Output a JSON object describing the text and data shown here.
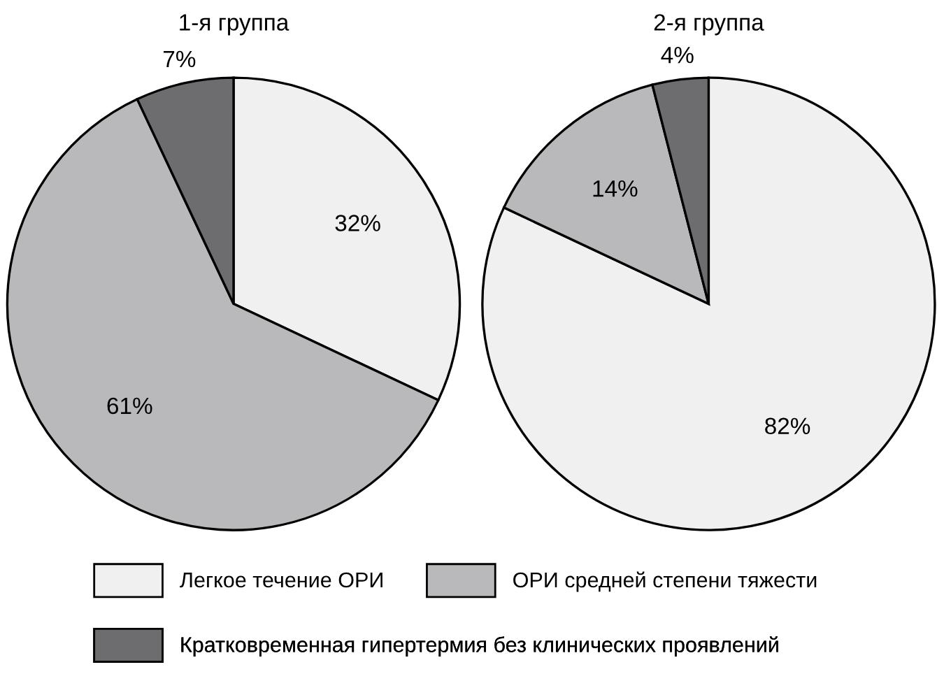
{
  "chart_data": [
    {
      "type": "pie",
      "title": "1-я группа",
      "categories": [
        "Легкое течение ОРИ",
        "ОРИ средней степени тяжести",
        "Кратковременная гипертермия без клинических проявлений"
      ],
      "values": [
        32,
        61,
        7
      ],
      "value_labels": [
        "32%",
        "61%",
        "7%"
      ],
      "colors": [
        "#f0f0f0",
        "#b9b9bb",
        "#6d6d70"
      ],
      "legend": "bottom"
    },
    {
      "type": "pie",
      "title": "2-я группа",
      "categories": [
        null,
        null,
        null
      ],
      "values": [
        82,
        14,
        4
      ],
      "value_labels": [
        "82%",
        "14%",
        "4%"
      ],
      "colors": [
        "#f0f0f0",
        "#b9b9bb",
        "#6d6d70"
      ]
    }
  ]
}
